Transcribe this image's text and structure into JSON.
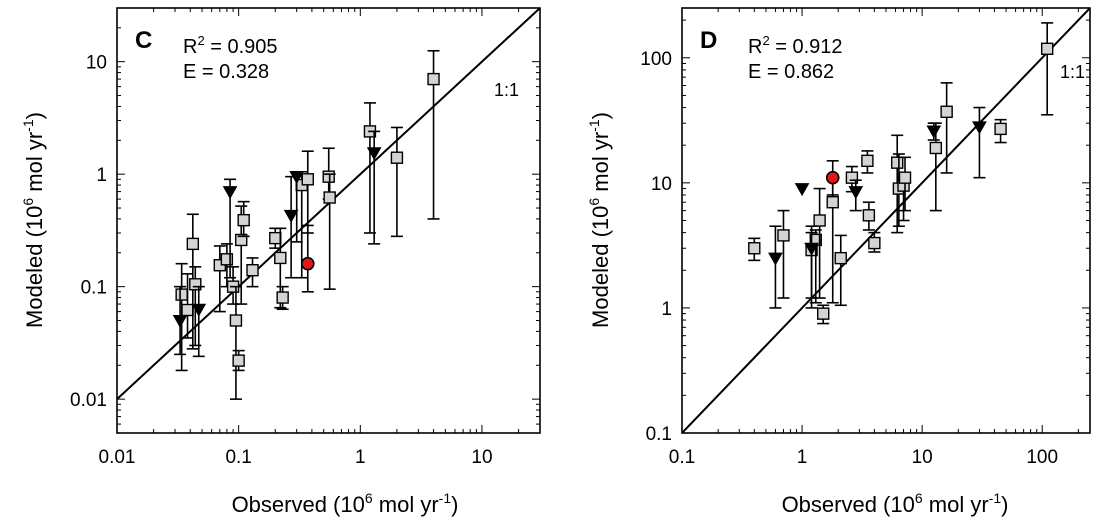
{
  "chart_data": [
    {
      "type": "scatter",
      "panel_label": "C",
      "stats": {
        "r2_prefix": "R",
        "r2_sup": "2",
        "r2_value": "=  0.905",
        "e_line": "E =  0.328"
      },
      "line_label": "1:1",
      "xlabel": {
        "pre": "Observed (10",
        "sup": "6",
        "post": " mol yr",
        "sup2": "-1",
        "end": ")"
      },
      "ylabel": {
        "pre": "Modeled (10",
        "sup": "6",
        "post": " mol  yr",
        "sup2": "-1",
        "end": ")"
      },
      "xscale": "log",
      "yscale": "log",
      "xlim": [
        0.01,
        30
      ],
      "ylim": [
        0.005,
        30
      ],
      "xticks": [
        {
          "v": 0.01,
          "label": "0.01"
        },
        {
          "v": 0.1,
          "label": "0.1"
        },
        {
          "v": 1,
          "label": "1"
        },
        {
          "v": 10,
          "label": "10"
        }
      ],
      "yticks": [
        {
          "v": 0.01,
          "label": "0.01"
        },
        {
          "v": 0.1,
          "label": "0.1"
        },
        {
          "v": 1,
          "label": "1"
        },
        {
          "v": 10,
          "label": "10"
        }
      ],
      "identity_line": true,
      "points": [
        {
          "x": 0.034,
          "y": 0.085,
          "lo": 0.018,
          "hi": 0.16,
          "m": "square"
        },
        {
          "x": 0.038,
          "y": 0.062,
          "lo": 0.035,
          "hi": 0.13,
          "m": "square"
        },
        {
          "x": 0.042,
          "y": 0.24,
          "lo": 0.028,
          "hi": 0.44,
          "m": "square"
        },
        {
          "x": 0.044,
          "y": 0.105,
          "lo": 0.03,
          "hi": 0.15,
          "m": "square"
        },
        {
          "x": 0.07,
          "y": 0.155,
          "lo": 0.06,
          "hi": 0.23,
          "m": "square"
        },
        {
          "x": 0.08,
          "y": 0.175,
          "lo": 0.1,
          "hi": 0.24,
          "m": "square"
        },
        {
          "x": 0.09,
          "y": 0.1,
          "lo": 0.07,
          "hi": 0.15,
          "m": "square"
        },
        {
          "x": 0.095,
          "y": 0.05,
          "lo": 0.01,
          "hi": 0.1,
          "m": "square"
        },
        {
          "x": 0.1,
          "y": 0.022,
          "lo": 0.018,
          "hi": 0.027,
          "m": "square"
        },
        {
          "x": 0.105,
          "y": 0.26,
          "lo": 0.07,
          "hi": 0.52,
          "m": "square"
        },
        {
          "x": 0.11,
          "y": 0.39,
          "lo": 0.28,
          "hi": 0.57,
          "m": "square"
        },
        {
          "x": 0.13,
          "y": 0.14,
          "lo": 0.1,
          "hi": 0.18,
          "m": "square"
        },
        {
          "x": 0.2,
          "y": 0.27,
          "lo": 0.22,
          "hi": 0.33,
          "m": "square"
        },
        {
          "x": 0.22,
          "y": 0.18,
          "lo": 0.065,
          "hi": 0.33,
          "m": "square"
        },
        {
          "x": 0.23,
          "y": 0.08,
          "lo": 0.063,
          "hi": 0.1,
          "m": "square"
        },
        {
          "x": 0.33,
          "y": 0.8,
          "lo": 0.12,
          "hi": 1.05,
          "m": "square"
        },
        {
          "x": 0.37,
          "y": 0.9,
          "lo": 0.3,
          "hi": 1.6,
          "m": "square"
        },
        {
          "x": 0.55,
          "y": 0.95,
          "lo": 0.6,
          "hi": 1.7,
          "m": "square"
        },
        {
          "x": 0.56,
          "y": 0.62,
          "lo": 0.095,
          "hi": 1.0,
          "m": "square"
        },
        {
          "x": 1.2,
          "y": 2.4,
          "lo": 0.3,
          "hi": 4.3,
          "m": "square"
        },
        {
          "x": 2.0,
          "y": 1.4,
          "lo": 0.28,
          "hi": 2.6,
          "m": "square"
        },
        {
          "x": 4.0,
          "y": 7.0,
          "lo": 0.4,
          "hi": 12.5,
          "m": "square"
        },
        {
          "x": 0.033,
          "y": 0.05,
          "lo": 0.025,
          "hi": 0.1,
          "m": "triangle"
        },
        {
          "x": 0.047,
          "y": 0.063,
          "lo": 0.024,
          "hi": 0.1,
          "m": "triangle"
        },
        {
          "x": 0.085,
          "y": 0.7,
          "lo": 0.12,
          "hi": 0.9,
          "m": "triangle"
        },
        {
          "x": 0.27,
          "y": 0.43,
          "lo": 0.12,
          "hi": 0.95,
          "m": "triangle"
        },
        {
          "x": 0.3,
          "y": 0.95,
          "lo": 0.25,
          "hi": 1.05,
          "m": "triangle"
        },
        {
          "x": 1.3,
          "y": 1.55,
          "lo": 0.24,
          "hi": 2.4,
          "m": "triangle"
        },
        {
          "x": 0.37,
          "y": 0.16,
          "lo": 0.09,
          "hi": 0.35,
          "m": "circle"
        }
      ]
    },
    {
      "type": "scatter",
      "panel_label": "D",
      "stats": {
        "r2_prefix": "R",
        "r2_sup": "2",
        "r2_value": "=  0.912",
        "e_line": "E =  0.862"
      },
      "line_label": "1:1",
      "xlabel": {
        "pre": "Observed (10",
        "sup": "6",
        "post": " mol yr",
        "sup2": "-1",
        "end": ")"
      },
      "ylabel": {
        "pre": "Modeled (10",
        "sup": "6",
        "post": " mol  yr",
        "sup2": "-1",
        "end": ")"
      },
      "xscale": "log",
      "yscale": "log",
      "xlim": [
        0.1,
        250
      ],
      "ylim": [
        0.1,
        250
      ],
      "xticks": [
        {
          "v": 0.1,
          "label": "0.1"
        },
        {
          "v": 1,
          "label": "1"
        },
        {
          "v": 10,
          "label": "10"
        },
        {
          "v": 100,
          "label": "100"
        }
      ],
      "yticks": [
        {
          "v": 0.1,
          "label": "0.1"
        },
        {
          "v": 1,
          "label": "1"
        },
        {
          "v": 10,
          "label": "10"
        },
        {
          "v": 100,
          "label": "100"
        }
      ],
      "identity_line": true,
      "points": [
        {
          "x": 0.4,
          "y": 3.0,
          "lo": 2.4,
          "hi": 3.6,
          "m": "square"
        },
        {
          "x": 0.7,
          "y": 3.8,
          "lo": 1.2,
          "hi": 6.0,
          "m": "square"
        },
        {
          "x": 1.2,
          "y": 2.9,
          "lo": 1.0,
          "hi": 4.0,
          "m": "square"
        },
        {
          "x": 1.3,
          "y": 3.5,
          "lo": 1.1,
          "hi": 4.2,
          "m": "square"
        },
        {
          "x": 1.4,
          "y": 5.0,
          "lo": 1.2,
          "hi": 9.0,
          "m": "square"
        },
        {
          "x": 1.5,
          "y": 0.9,
          "lo": 0.75,
          "hi": 1.05,
          "m": "square"
        },
        {
          "x": 1.8,
          "y": 7.0,
          "lo": 1.1,
          "hi": 11.0,
          "m": "square"
        },
        {
          "x": 2.1,
          "y": 2.5,
          "lo": 1.05,
          "hi": 3.8,
          "m": "square"
        },
        {
          "x": 2.6,
          "y": 11.0,
          "lo": 8.5,
          "hi": 13.5,
          "m": "square"
        },
        {
          "x": 3.5,
          "y": 15.0,
          "lo": 12.0,
          "hi": 18.0,
          "m": "square"
        },
        {
          "x": 3.6,
          "y": 5.5,
          "lo": 4.2,
          "hi": 7.0,
          "m": "square"
        },
        {
          "x": 4.0,
          "y": 3.3,
          "lo": 2.8,
          "hi": 4.0,
          "m": "square"
        },
        {
          "x": 6.2,
          "y": 14.5,
          "lo": 4.0,
          "hi": 24.0,
          "m": "square"
        },
        {
          "x": 6.4,
          "y": 9.0,
          "lo": 4.5,
          "hi": 17.0,
          "m": "square"
        },
        {
          "x": 7.0,
          "y": 9.5,
          "lo": 5.0,
          "hi": 11.0,
          "m": "square"
        },
        {
          "x": 7.2,
          "y": 11.0,
          "lo": 6.0,
          "hi": 16.0,
          "m": "square"
        },
        {
          "x": 13.0,
          "y": 19.0,
          "lo": 6.0,
          "hi": 30.0,
          "m": "square"
        },
        {
          "x": 16.0,
          "y": 37.0,
          "lo": 12.0,
          "hi": 63.0,
          "m": "square"
        },
        {
          "x": 45.0,
          "y": 27.0,
          "lo": 21.0,
          "hi": 32.0,
          "m": "square"
        },
        {
          "x": 110.0,
          "y": 118.0,
          "lo": 35.0,
          "hi": 190.0,
          "m": "square"
        },
        {
          "x": 0.6,
          "y": 2.5,
          "lo": 1.0,
          "hi": 4.5,
          "m": "triangle"
        },
        {
          "x": 1.0,
          "y": 9.0,
          "lo": 9.0,
          "hi": 9.0,
          "m": "triangle"
        },
        {
          "x": 1.2,
          "y": 3.0,
          "lo": 1.2,
          "hi": 4.5,
          "m": "triangle"
        },
        {
          "x": 2.8,
          "y": 8.5,
          "lo": 6.0,
          "hi": 10.5,
          "m": "triangle"
        },
        {
          "x": 12.5,
          "y": 26.0,
          "lo": 22.0,
          "hi": 30.0,
          "m": "triangle"
        },
        {
          "x": 30.0,
          "y": 28.0,
          "lo": 11.0,
          "hi": 40.0,
          "m": "triangle"
        },
        {
          "x": 1.8,
          "y": 11.0,
          "lo": 8.0,
          "hi": 15.0,
          "m": "circle"
        }
      ]
    }
  ]
}
